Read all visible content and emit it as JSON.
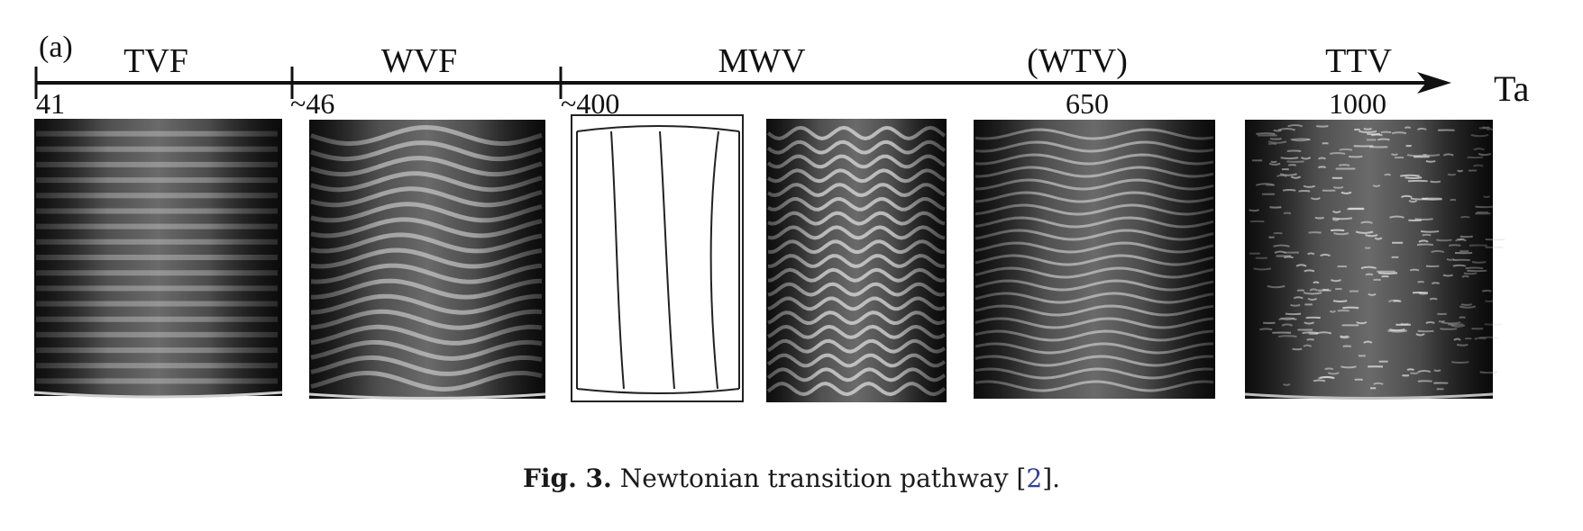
{
  "figure": {
    "panel_label": "(a)",
    "axis_label": "Ta",
    "regimes": [
      "TVF",
      "WVF",
      "MWV",
      "(WTV)",
      "TTV"
    ],
    "tick_values": [
      "41",
      "~46",
      "~400",
      "650",
      "1000"
    ],
    "panels": [
      {
        "name": "tvf-photo",
        "style": "straight-bands"
      },
      {
        "name": "wvf-photo",
        "style": "wavy-bands"
      },
      {
        "name": "mwv-sketch",
        "style": "line-sketch"
      },
      {
        "name": "mwv-photo",
        "style": "modulated-waves"
      },
      {
        "name": "wtv-photo",
        "style": "wavy-turbulent-bands"
      },
      {
        "name": "ttv-photo",
        "style": "turbulent-texture"
      }
    ],
    "colors": {
      "ink": "#111111",
      "photo_dark": "#2a2a2a",
      "photo_light": "#d8d8d8"
    }
  },
  "caption": {
    "label": "Fig. 3.",
    "text": " Newtonian transition pathway [",
    "ref": "2",
    "end": "]."
  }
}
